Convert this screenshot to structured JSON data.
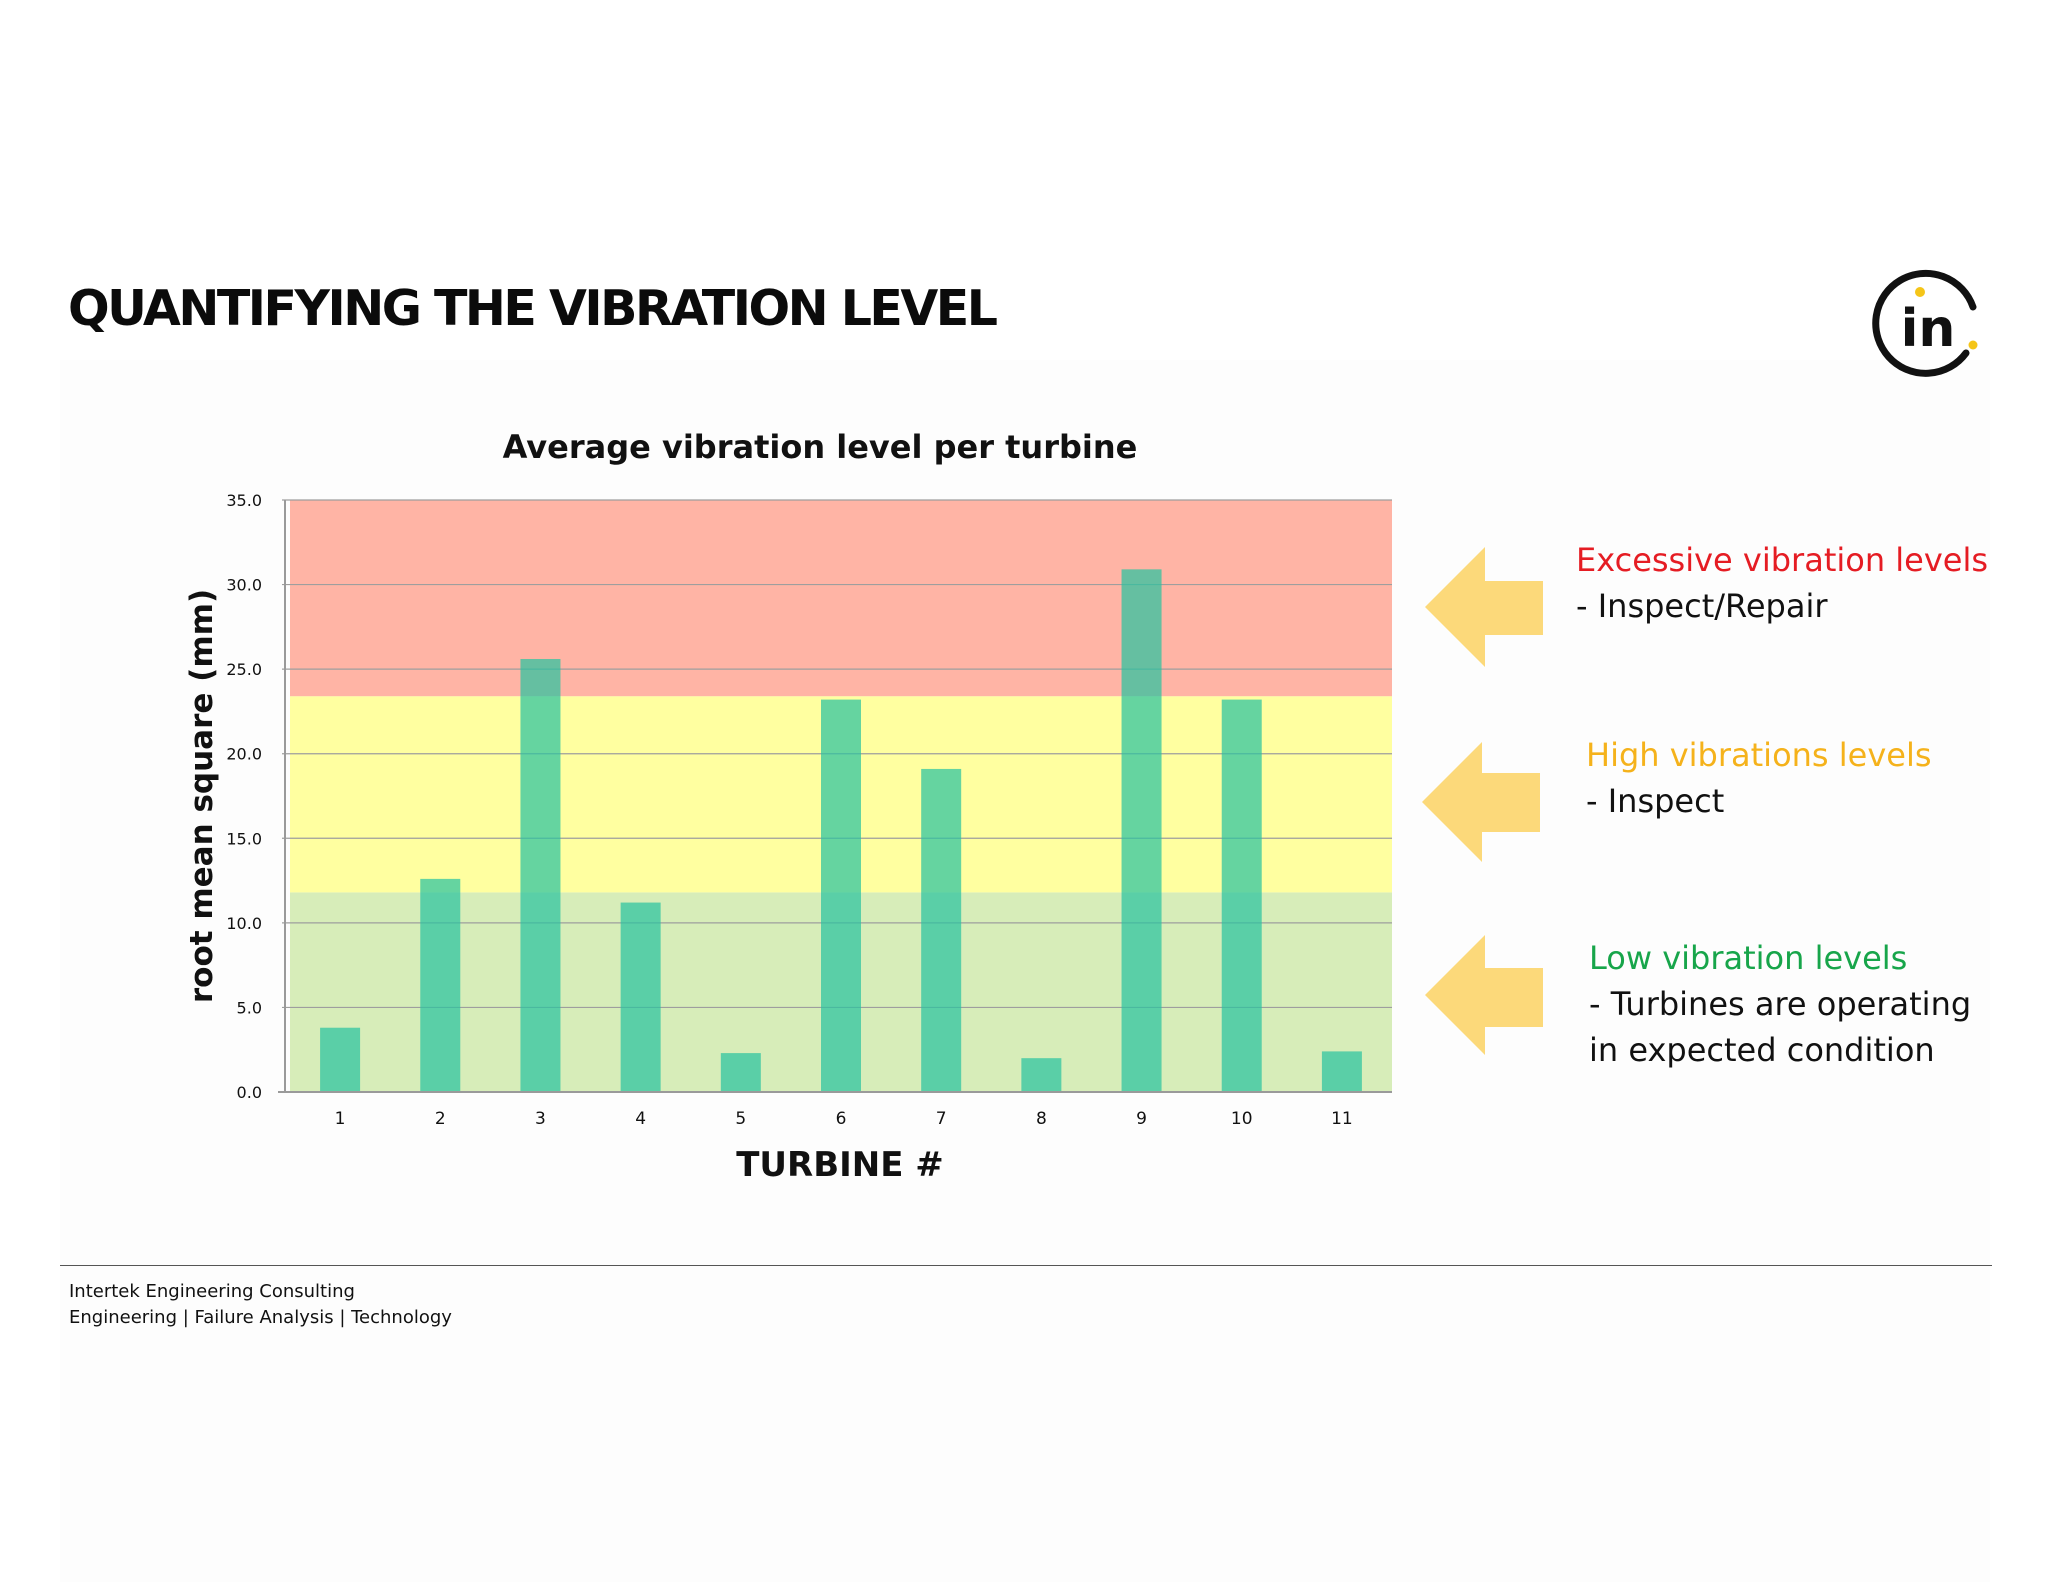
{
  "slide": {
    "title": "QUANTIFYING THE VIBRATION LEVEL"
  },
  "logo": {
    "icon": "intertek-in-logo",
    "text": "in",
    "ring_color": "#111111",
    "dot_color": "#f5c518"
  },
  "chart_data": {
    "type": "bar",
    "title": "Average vibration level per turbine",
    "xlabel": "TURBINE #",
    "ylabel": "root mean square (mm)",
    "categories": [
      "1",
      "2",
      "3",
      "4",
      "5",
      "6",
      "7",
      "8",
      "9",
      "10",
      "11"
    ],
    "values": [
      3.8,
      12.6,
      25.6,
      11.2,
      2.3,
      23.2,
      19.1,
      2.0,
      30.9,
      23.2,
      2.4
    ],
    "ylim": [
      0,
      35
    ],
    "yticks": [
      "0.0",
      "5.0",
      "10.0",
      "15.0",
      "20.0",
      "25.0",
      "30.0",
      "35.0"
    ],
    "grid": true,
    "bar_color": "#2ac3a0",
    "bands": [
      {
        "name": "Low vibration levels",
        "from": 0,
        "to": 11.8,
        "color": "#d7edb9"
      },
      {
        "name": "High vibrations levels",
        "from": 11.8,
        "to": 23.4,
        "color": "#ffffa0"
      },
      {
        "name": "Excessive vibration levels",
        "from": 23.4,
        "to": 35,
        "color": "#ffb4a5"
      }
    ]
  },
  "callouts": [
    {
      "title": "Excessive vibration levels",
      "desc": [
        "- Inspect/Repair"
      ],
      "title_color": "#e51c23",
      "arrow_color": "#fcd97a"
    },
    {
      "title": "High vibrations levels",
      "desc": [
        "- Inspect"
      ],
      "title_color": "#f5b21b",
      "arrow_color": "#fcd97a"
    },
    {
      "title": "Low vibration levels",
      "desc": [
        "- Turbines are operating",
        "in expected condition"
      ],
      "title_color": "#17a54a",
      "arrow_color": "#fcd97a"
    }
  ],
  "footer": {
    "company": "Intertek Engineering Consulting",
    "services": "Engineering | Failure Analysis | Technology"
  }
}
